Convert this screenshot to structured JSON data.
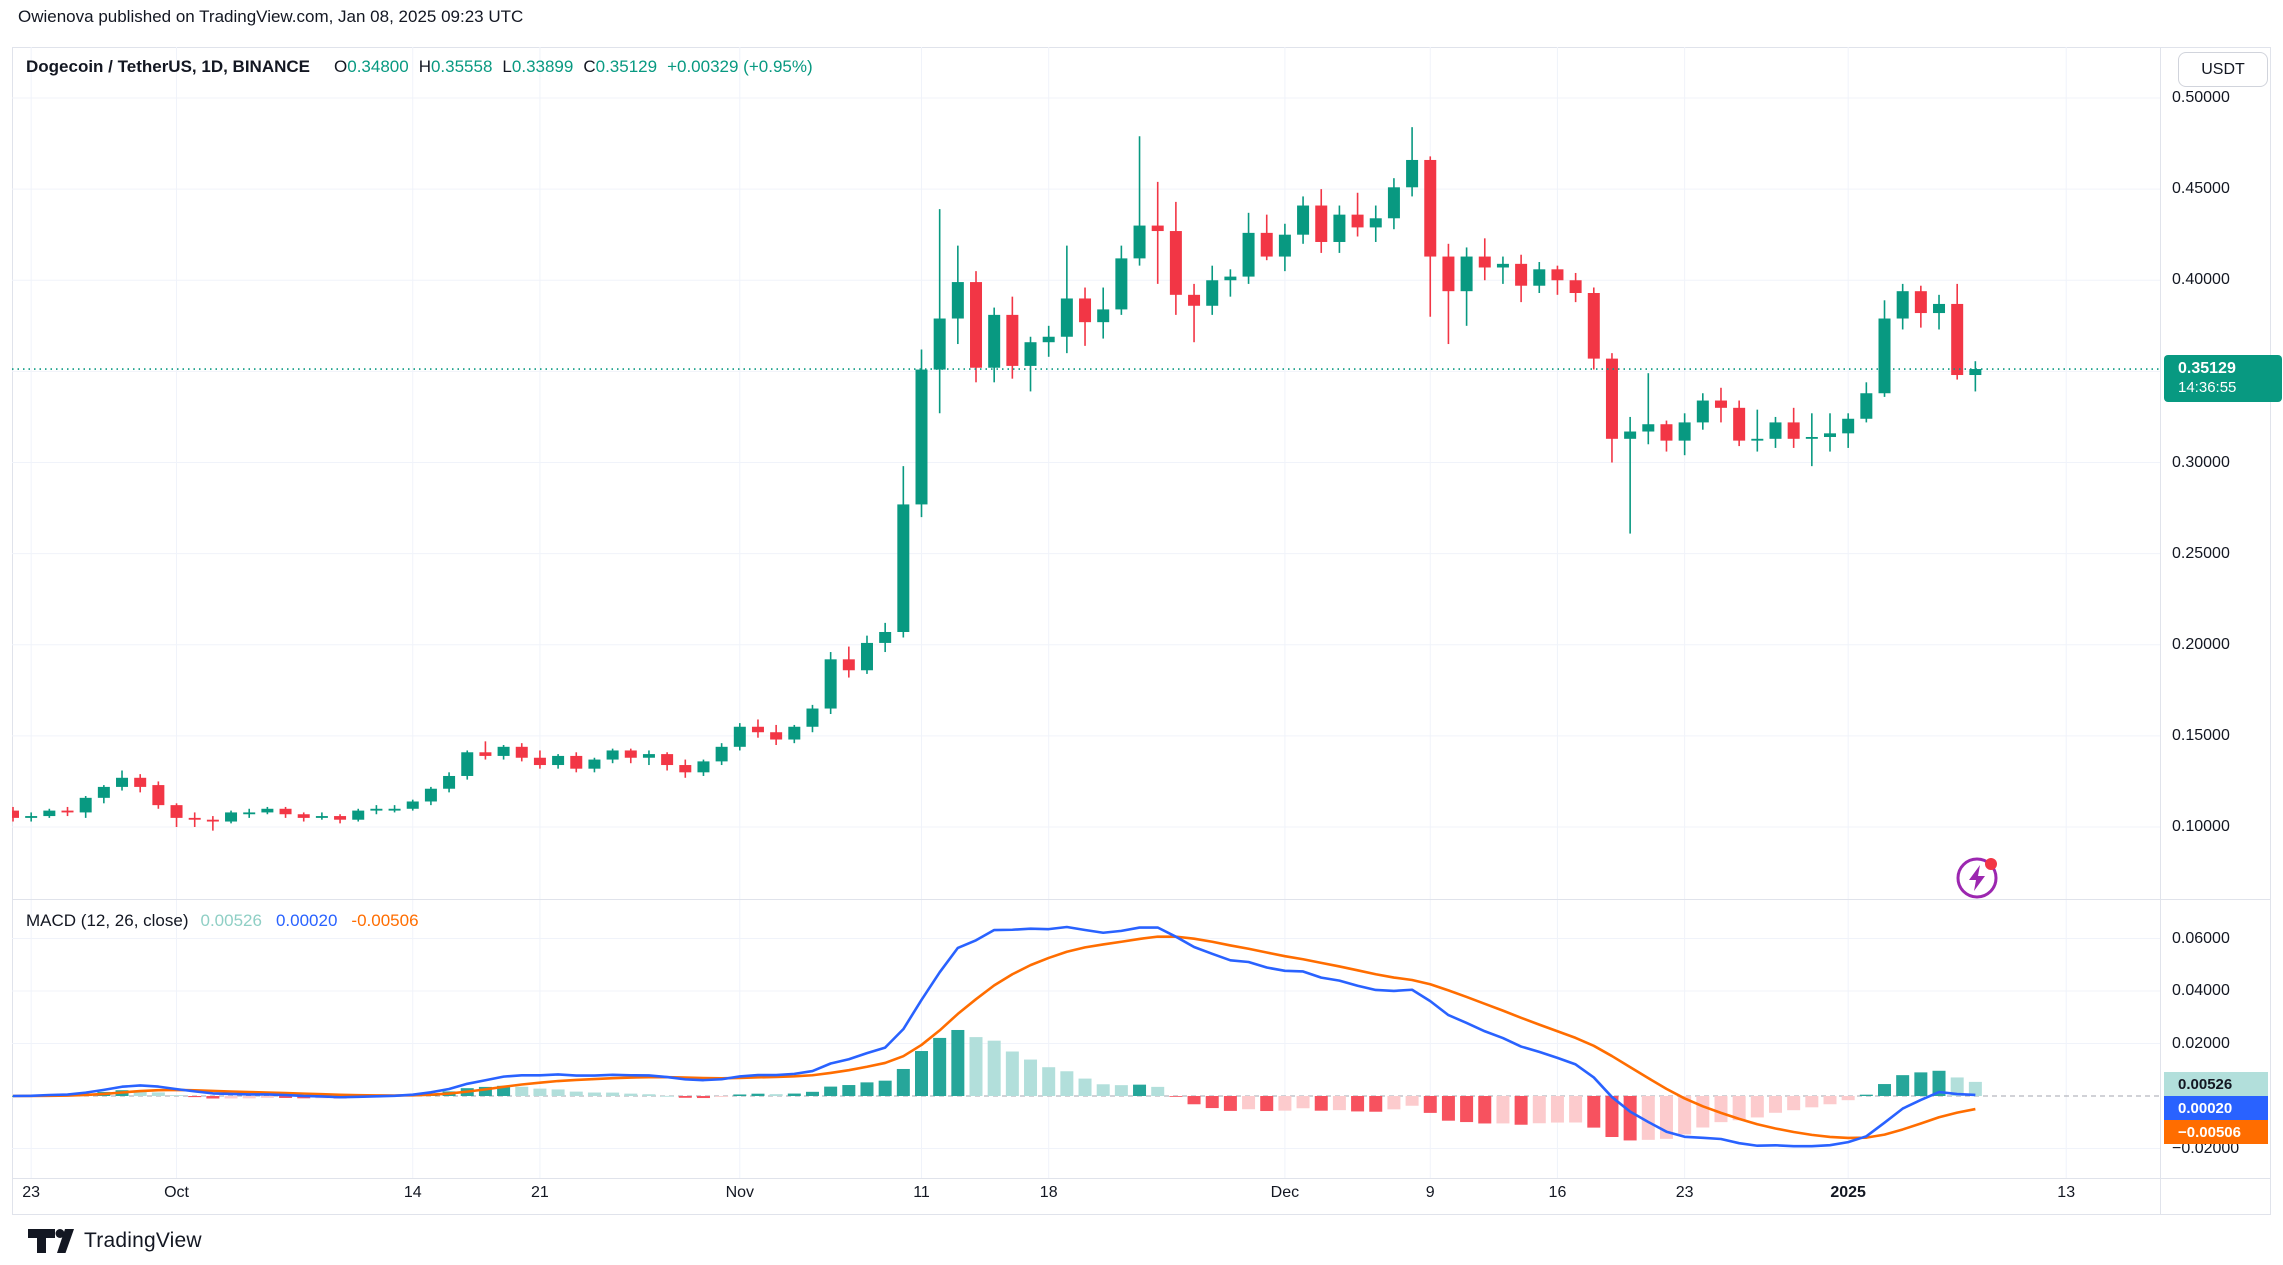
{
  "attribution": "Owienova published on TradingView.com, Jan 08, 2025 09:23 UTC",
  "header": {
    "symbol": "Dogecoin / TetherUS, 1D, BINANCE",
    "open_label": "O",
    "open": "0.34800",
    "high_label": "H",
    "high": "0.35558",
    "low_label": "L",
    "low": "0.33899",
    "close_label": "C",
    "close": "0.35129",
    "change": "+0.00329 (+0.95%)"
  },
  "price_axis": {
    "currency_button": "USDT",
    "last_price": "0.35129",
    "countdown": "14:36:55"
  },
  "macd_legend": {
    "label": "MACD (12, 26, close)",
    "hist_value": "0.00526",
    "macd_value": "0.00020",
    "signal_value": "-0.00506"
  },
  "footer": {
    "brand": "TradingView"
  },
  "colors": {
    "up": "#089981",
    "down": "#F23645",
    "macd_line": "#2962FF",
    "signal_line": "#FF6D00",
    "hist_grow_above": "#26A69A",
    "hist_fall_above": "#B2DFDB",
    "hist_fall_below": "#F7525F",
    "hist_grow_below": "#FCCBCD",
    "grid": "#F0F3FA",
    "border": "#E0E3EB",
    "axis_text": "#131722",
    "price_line": "#089981",
    "zero_line": "#A3A6AF",
    "flash_icon_purple": "#9C27B0",
    "flash_icon_dot": "#F23645"
  },
  "chart_data": {
    "type": "candlestick+macd",
    "title": "Dogecoin / TetherUS, 1D, BINANCE",
    "interval": "1D",
    "start_date": "2024-09-22",
    "end_date": "2025-01-08",
    "current_price": 0.35129,
    "price_axis_ticks": [
      0.5,
      0.45,
      0.4,
      0.3,
      0.25,
      0.2,
      0.15,
      0.1
    ],
    "price_grid": [
      0.1,
      0.15,
      0.2,
      0.25,
      0.3,
      0.35,
      0.4,
      0.45,
      0.5
    ],
    "macd_axis_ticks": [
      0.06,
      0.04,
      0.02,
      -0.02
    ],
    "macd_params": [
      12,
      26,
      9
    ],
    "x_ticks": [
      {
        "label": "23",
        "index": 1
      },
      {
        "label": "Oct",
        "index": 9
      },
      {
        "label": "14",
        "index": 22
      },
      {
        "label": "21",
        "index": 29
      },
      {
        "label": "Nov",
        "index": 40
      },
      {
        "label": "11",
        "index": 50
      },
      {
        "label": "18",
        "index": 57
      },
      {
        "label": "Dec",
        "index": 70
      },
      {
        "label": "9",
        "index": 78
      },
      {
        "label": "16",
        "index": 85
      },
      {
        "label": "23",
        "index": 92
      },
      {
        "label": "2025",
        "index": 101,
        "bold": true
      },
      {
        "label": "13",
        "index": 113
      }
    ],
    "candles_ohlc": [
      [
        0.109,
        0.111,
        0.103,
        0.105
      ],
      [
        0.105,
        0.108,
        0.103,
        0.106
      ],
      [
        0.106,
        0.11,
        0.105,
        0.109
      ],
      [
        0.109,
        0.111,
        0.106,
        0.108
      ],
      [
        0.108,
        0.117,
        0.105,
        0.116
      ],
      [
        0.116,
        0.123,
        0.113,
        0.122
      ],
      [
        0.122,
        0.131,
        0.12,
        0.127
      ],
      [
        0.127,
        0.129,
        0.119,
        0.122
      ],
      [
        0.123,
        0.125,
        0.11,
        0.112
      ],
      [
        0.112,
        0.113,
        0.1,
        0.105
      ],
      [
        0.105,
        0.108,
        0.1,
        0.104
      ],
      [
        0.104,
        0.106,
        0.098,
        0.103
      ],
      [
        0.103,
        0.109,
        0.102,
        0.108
      ],
      [
        0.107,
        0.11,
        0.105,
        0.108
      ],
      [
        0.108,
        0.111,
        0.107,
        0.11
      ],
      [
        0.11,
        0.111,
        0.105,
        0.107
      ],
      [
        0.107,
        0.108,
        0.103,
        0.105
      ],
      [
        0.105,
        0.108,
        0.104,
        0.106
      ],
      [
        0.106,
        0.107,
        0.102,
        0.104
      ],
      [
        0.104,
        0.11,
        0.103,
        0.109
      ],
      [
        0.109,
        0.112,
        0.107,
        0.11
      ],
      [
        0.109,
        0.112,
        0.108,
        0.11
      ],
      [
        0.11,
        0.115,
        0.109,
        0.114
      ],
      [
        0.114,
        0.122,
        0.112,
        0.121
      ],
      [
        0.121,
        0.13,
        0.119,
        0.128
      ],
      [
        0.128,
        0.142,
        0.126,
        0.141
      ],
      [
        0.141,
        0.147,
        0.137,
        0.139
      ],
      [
        0.139,
        0.145,
        0.137,
        0.144
      ],
      [
        0.144,
        0.146,
        0.136,
        0.138
      ],
      [
        0.138,
        0.142,
        0.132,
        0.134
      ],
      [
        0.134,
        0.14,
        0.132,
        0.139
      ],
      [
        0.139,
        0.141,
        0.13,
        0.132
      ],
      [
        0.132,
        0.138,
        0.13,
        0.137
      ],
      [
        0.137,
        0.143,
        0.135,
        0.142
      ],
      [
        0.142,
        0.143,
        0.135,
        0.138
      ],
      [
        0.138,
        0.142,
        0.134,
        0.14
      ],
      [
        0.14,
        0.141,
        0.131,
        0.134
      ],
      [
        0.134,
        0.137,
        0.127,
        0.13
      ],
      [
        0.13,
        0.137,
        0.128,
        0.136
      ],
      [
        0.136,
        0.146,
        0.134,
        0.144
      ],
      [
        0.144,
        0.157,
        0.142,
        0.155
      ],
      [
        0.155,
        0.159,
        0.149,
        0.152
      ],
      [
        0.152,
        0.156,
        0.145,
        0.148
      ],
      [
        0.148,
        0.156,
        0.146,
        0.155
      ],
      [
        0.155,
        0.167,
        0.152,
        0.165
      ],
      [
        0.165,
        0.196,
        0.162,
        0.192
      ],
      [
        0.192,
        0.199,
        0.182,
        0.186
      ],
      [
        0.186,
        0.205,
        0.184,
        0.201
      ],
      [
        0.201,
        0.212,
        0.196,
        0.207
      ],
      [
        0.207,
        0.298,
        0.204,
        0.277
      ],
      [
        0.277,
        0.362,
        0.27,
        0.351
      ],
      [
        0.351,
        0.439,
        0.327,
        0.379
      ],
      [
        0.379,
        0.419,
        0.365,
        0.399
      ],
      [
        0.399,
        0.405,
        0.344,
        0.352
      ],
      [
        0.352,
        0.385,
        0.344,
        0.381
      ],
      [
        0.381,
        0.391,
        0.346,
        0.353
      ],
      [
        0.353,
        0.369,
        0.339,
        0.366
      ],
      [
        0.366,
        0.375,
        0.358,
        0.369
      ],
      [
        0.369,
        0.419,
        0.36,
        0.39
      ],
      [
        0.39,
        0.396,
        0.364,
        0.377
      ],
      [
        0.377,
        0.396,
        0.368,
        0.384
      ],
      [
        0.384,
        0.419,
        0.381,
        0.412
      ],
      [
        0.412,
        0.479,
        0.408,
        0.43
      ],
      [
        0.43,
        0.454,
        0.398,
        0.427
      ],
      [
        0.427,
        0.443,
        0.381,
        0.392
      ],
      [
        0.392,
        0.398,
        0.366,
        0.386
      ],
      [
        0.386,
        0.408,
        0.381,
        0.4
      ],
      [
        0.4,
        0.406,
        0.391,
        0.402
      ],
      [
        0.402,
        0.437,
        0.398,
        0.426
      ],
      [
        0.426,
        0.436,
        0.411,
        0.413
      ],
      [
        0.413,
        0.431,
        0.405,
        0.425
      ],
      [
        0.425,
        0.446,
        0.42,
        0.441
      ],
      [
        0.441,
        0.45,
        0.415,
        0.421
      ],
      [
        0.421,
        0.441,
        0.415,
        0.436
      ],
      [
        0.436,
        0.448,
        0.424,
        0.429
      ],
      [
        0.429,
        0.441,
        0.421,
        0.434
      ],
      [
        0.434,
        0.456,
        0.428,
        0.451
      ],
      [
        0.451,
        0.484,
        0.446,
        0.466
      ],
      [
        0.466,
        0.468,
        0.38,
        0.413
      ],
      [
        0.413,
        0.42,
        0.365,
        0.394
      ],
      [
        0.394,
        0.418,
        0.375,
        0.413
      ],
      [
        0.413,
        0.423,
        0.4,
        0.407
      ],
      [
        0.407,
        0.413,
        0.398,
        0.409
      ],
      [
        0.409,
        0.414,
        0.388,
        0.397
      ],
      [
        0.397,
        0.41,
        0.393,
        0.406
      ],
      [
        0.406,
        0.408,
        0.392,
        0.4
      ],
      [
        0.4,
        0.404,
        0.388,
        0.393
      ],
      [
        0.393,
        0.396,
        0.351,
        0.357
      ],
      [
        0.357,
        0.36,
        0.3,
        0.313
      ],
      [
        0.313,
        0.325,
        0.261,
        0.317
      ],
      [
        0.317,
        0.349,
        0.31,
        0.321
      ],
      [
        0.321,
        0.323,
        0.306,
        0.312
      ],
      [
        0.312,
        0.327,
        0.304,
        0.322
      ],
      [
        0.322,
        0.338,
        0.318,
        0.334
      ],
      [
        0.334,
        0.341,
        0.322,
        0.33
      ],
      [
        0.33,
        0.334,
        0.309,
        0.312
      ],
      [
        0.312,
        0.329,
        0.306,
        0.313
      ],
      [
        0.313,
        0.325,
        0.308,
        0.322
      ],
      [
        0.322,
        0.33,
        0.308,
        0.313
      ],
      [
        0.313,
        0.327,
        0.298,
        0.314
      ],
      [
        0.314,
        0.327,
        0.306,
        0.316
      ],
      [
        0.316,
        0.327,
        0.308,
        0.324
      ],
      [
        0.324,
        0.344,
        0.322,
        0.338
      ],
      [
        0.338,
        0.389,
        0.336,
        0.379
      ],
      [
        0.379,
        0.398,
        0.373,
        0.394
      ],
      [
        0.394,
        0.397,
        0.374,
        0.382
      ],
      [
        0.382,
        0.392,
        0.373,
        0.387
      ],
      [
        0.387,
        0.398,
        0.3455,
        0.348
      ],
      [
        0.348,
        0.35558,
        0.33899,
        0.35129
      ]
    ]
  }
}
